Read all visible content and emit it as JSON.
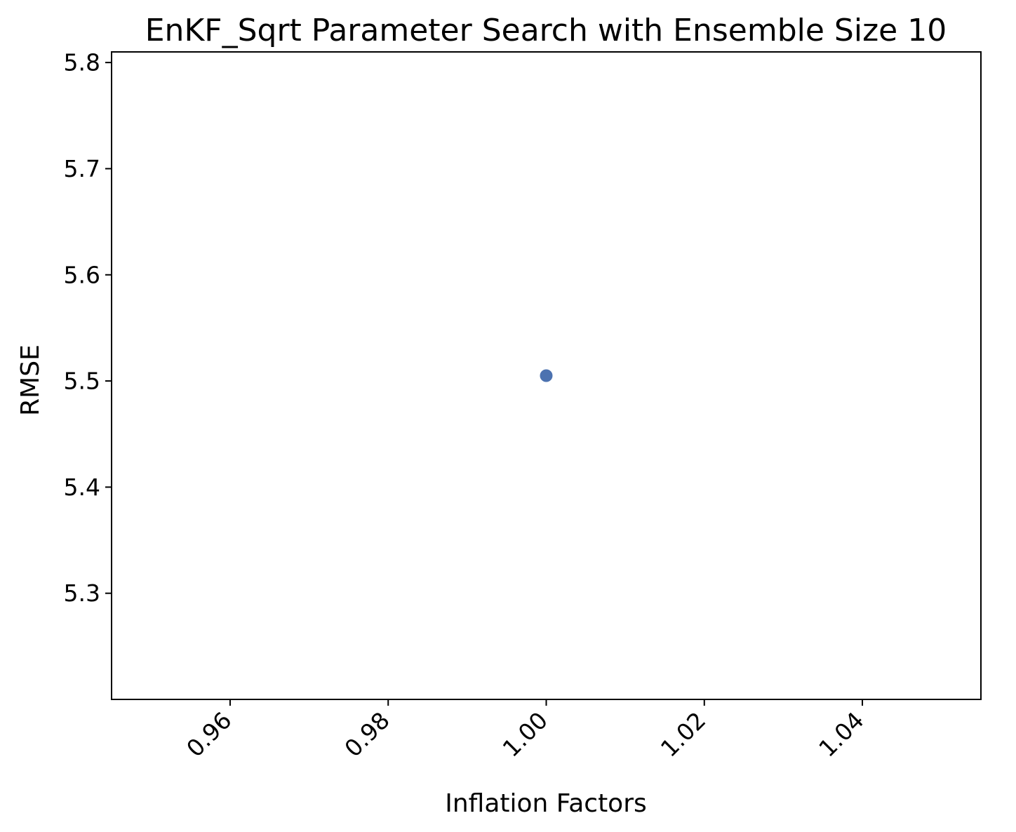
{
  "chart_data": {
    "type": "scatter",
    "title": "EnKF_Sqrt Parameter Search with Ensemble Size 10",
    "xlabel": "Inflation Factors",
    "ylabel": "RMSE",
    "xlim": [
      0.945,
      1.055
    ],
    "ylim": [
      5.2,
      5.81
    ],
    "xticks": [
      0.96,
      0.98,
      1.0,
      1.02,
      1.04
    ],
    "xtick_labels": [
      "0.96",
      "0.98",
      "1.00",
      "1.02",
      "1.04"
    ],
    "yticks": [
      5.3,
      5.4,
      5.5,
      5.6,
      5.7,
      5.8
    ],
    "ytick_labels": [
      "5.3",
      "5.4",
      "5.5",
      "5.6",
      "5.7",
      "5.8"
    ],
    "grid": false,
    "series": [
      {
        "color": "#4c72b0",
        "points": [
          {
            "x": 1.0,
            "y": 5.505
          }
        ]
      }
    ]
  }
}
